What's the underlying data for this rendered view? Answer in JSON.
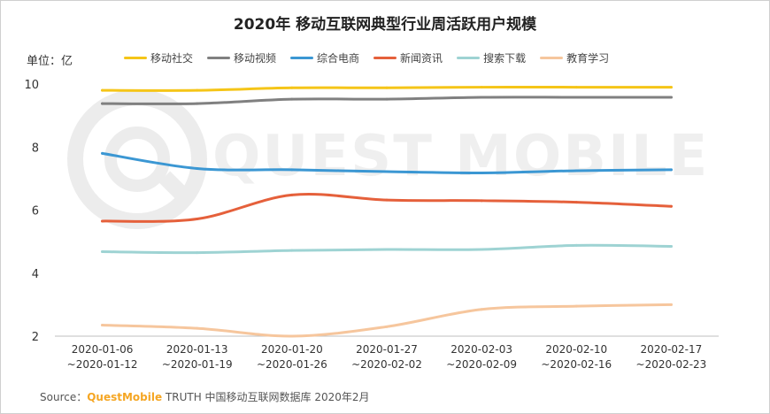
{
  "chart_data": {
    "type": "line",
    "title": "2020年 移动互联网典型行业周活跃用户规模",
    "unit_label": "单位：亿",
    "categories": [
      [
        "2020-01-06",
        "~2020-01-12"
      ],
      [
        "2020-01-13",
        "~2020-01-19"
      ],
      [
        "2020-01-20",
        "~2020-01-26"
      ],
      [
        "2020-01-27",
        "~2020-02-02"
      ],
      [
        "2020-02-03",
        "~2020-02-09"
      ],
      [
        "2020-02-10",
        "~2020-02-16"
      ],
      [
        "2020-02-17",
        "~2020-02-23"
      ]
    ],
    "ylim": [
      2,
      10
    ],
    "yticks": [
      2,
      4,
      6,
      8,
      10
    ],
    "grid": false,
    "legend_position": "top",
    "series": [
      {
        "name": "移动社交",
        "color": "#f5c518",
        "values": [
          9.8,
          9.8,
          9.88,
          9.88,
          9.9,
          9.9,
          9.9
        ]
      },
      {
        "name": "移动视频",
        "color": "#808080",
        "values": [
          9.38,
          9.38,
          9.52,
          9.52,
          9.58,
          9.58,
          9.58
        ]
      },
      {
        "name": "综合电商",
        "color": "#3b97d3",
        "values": [
          7.8,
          7.32,
          7.28,
          7.22,
          7.18,
          7.25,
          7.28
        ]
      },
      {
        "name": "新闻资讯",
        "color": "#e5603b",
        "values": [
          5.65,
          5.72,
          6.48,
          6.32,
          6.3,
          6.25,
          6.12
        ]
      },
      {
        "name": "搜索下载",
        "color": "#9ed3d3",
        "values": [
          4.68,
          4.65,
          4.72,
          4.75,
          4.75,
          4.88,
          4.85
        ]
      },
      {
        "name": "教育学习",
        "color": "#f6c69d",
        "values": [
          2.35,
          2.25,
          2.0,
          2.3,
          2.85,
          2.95,
          3.0
        ]
      }
    ]
  },
  "watermark": "QUEST MOBILE",
  "source": {
    "prefix": "Source：",
    "brand": "QuestMobile",
    "rest": " TRUTH 中国移动互联网数据库 2020年2月"
  }
}
